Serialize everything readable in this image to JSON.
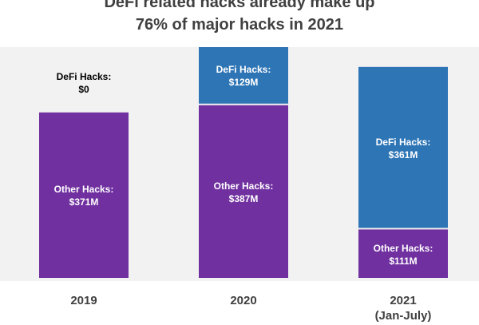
{
  "chart_data": {
    "type": "bar",
    "stacked": true,
    "title_lines": [
      "DeFi related hacks already make up",
      "76% of major hacks in 2021"
    ],
    "categories": [
      [
        "2019"
      ],
      [
        "2020"
      ],
      [
        "2021",
        "(Jan-July)"
      ]
    ],
    "series": [
      {
        "name": "Other Hacks",
        "color": "#7030a0",
        "values": [
          371,
          387,
          111
        ],
        "labels": [
          [
            "Other Hacks:",
            "$371M"
          ],
          [
            "Other Hacks:",
            "$387M"
          ],
          [
            "Other Hacks:",
            "$111M"
          ]
        ]
      },
      {
        "name": "DeFi Hacks",
        "color": "#2e75b6",
        "values": [
          0,
          129,
          361
        ],
        "labels": [
          [
            "DeFi Hacks:",
            "$0"
          ],
          [
            "DeFi Hacks:",
            "$129M"
          ],
          [
            "DeFi Hacks:",
            "$361M"
          ]
        ]
      }
    ],
    "unit": "$M",
    "ylim": [
      0,
      516
    ],
    "grid": false,
    "legend": "none",
    "text_color": "#404040",
    "background_color": "#f2f2f2"
  }
}
